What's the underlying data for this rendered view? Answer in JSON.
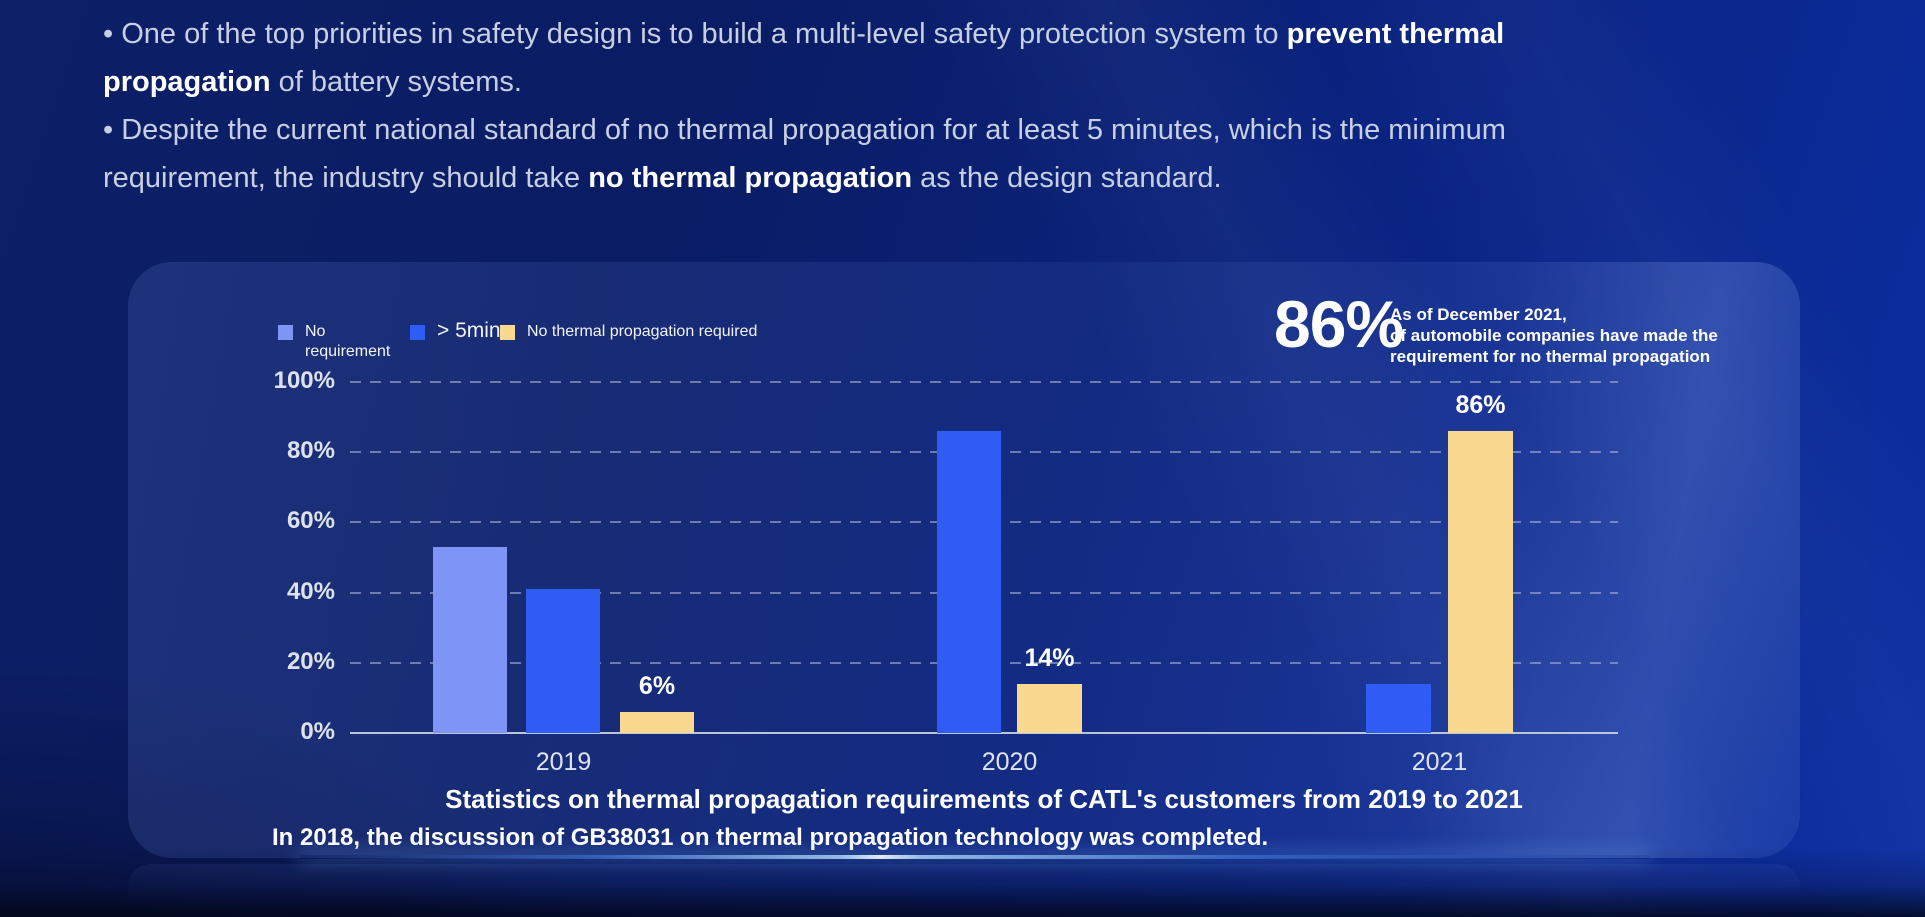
{
  "intro": {
    "lines": [
      {
        "segments": [
          {
            "text": "• One of the top priorities in safety design is to build a multi-level safety protection system to ",
            "bold": false
          },
          {
            "text": "prevent thermal",
            "bold": true
          }
        ]
      },
      {
        "segments": [
          {
            "text": "propagation",
            "bold": true
          },
          {
            "text": " of battery systems.",
            "bold": false
          }
        ]
      },
      {
        "segments": [
          {
            "text": "• Despite the current national standard of no thermal propagation for at least 5 minutes, which is the minimum",
            "bold": false
          }
        ]
      },
      {
        "segments": [
          {
            "text": "requirement, the industry should take ",
            "bold": false
          },
          {
            "text": "no thermal propagation",
            "bold": true
          },
          {
            "text": " as the design standard.",
            "bold": false
          }
        ]
      }
    ]
  },
  "panel": {
    "callout": {
      "value": "86%",
      "lines": [
        "As of December 2021,",
        "of automobile companies have made the",
        "requirement for no thermal propagation"
      ]
    },
    "title": "Statistics on thermal propagation requirements of CATL's customers from 2019 to 2021",
    "footnote": "In 2018, the discussion of GB38031 on thermal propagation technology was completed."
  },
  "chart_data": {
    "type": "bar",
    "title": "Statistics on thermal propagation requirements of CATL's customers from 2019 to 2021",
    "categories": [
      "2019",
      "2020",
      "2021"
    ],
    "series": [
      {
        "name": "No requirement",
        "color": "#7E94F6",
        "values": [
          53,
          null,
          null
        ]
      },
      {
        "name": "> 5min",
        "color": "#2F5CF5",
        "values": [
          41,
          86,
          14
        ]
      },
      {
        "name": "No thermal propagation required",
        "color": "#F8D98F",
        "values": [
          6,
          14,
          86
        ]
      }
    ],
    "value_labels": [
      {
        "category": "2019",
        "series": "No thermal propagation required",
        "text": "6%"
      },
      {
        "category": "2020",
        "series": "No thermal propagation required",
        "text": "14%"
      },
      {
        "category": "2021",
        "series": "No thermal propagation required",
        "text": "86%"
      }
    ],
    "ylim": [
      0,
      100
    ],
    "yticks": [
      "0%",
      "20%",
      "40%",
      "60%",
      "80%",
      "100%"
    ],
    "grid": "horizontal-dashed",
    "legend_position": "top-left"
  }
}
